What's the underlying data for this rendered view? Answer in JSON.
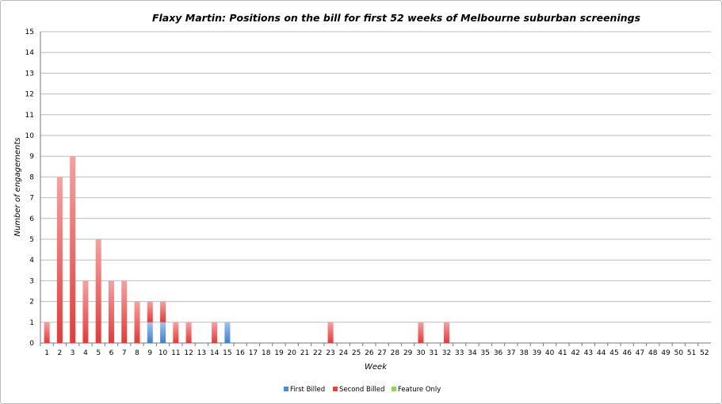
{
  "chart_data": {
    "type": "bar",
    "stacked": true,
    "title": "Flaxy Martin: Positions on the bill for first 52 weeks of Melbourne suburban screenings",
    "xlabel": "Week",
    "ylabel": "Number of engagements",
    "ylim": [
      0,
      15
    ],
    "yticks": [
      0,
      1,
      2,
      3,
      4,
      5,
      6,
      7,
      8,
      9,
      10,
      11,
      12,
      13,
      14,
      15
    ],
    "grid": true,
    "legend": "bottom",
    "categories": [
      "1",
      "2",
      "3",
      "4",
      "5",
      "6",
      "7",
      "8",
      "9",
      "10",
      "11",
      "12",
      "13",
      "14",
      "15",
      "16",
      "17",
      "18",
      "19",
      "20",
      "21",
      "22",
      "23",
      "24",
      "25",
      "26",
      "27",
      "28",
      "29",
      "30",
      "31",
      "32",
      "33",
      "34",
      "35",
      "36",
      "37",
      "38",
      "39",
      "40",
      "41",
      "42",
      "43",
      "44",
      "45",
      "46",
      "47",
      "48",
      "49",
      "50",
      "51",
      "52"
    ],
    "series": [
      {
        "name": "First Billed",
        "color": "#4a8ad8",
        "values": [
          0,
          0,
          0,
          0,
          0,
          0,
          0,
          0,
          1,
          1,
          0,
          0,
          0,
          0,
          1,
          0,
          0,
          0,
          0,
          0,
          0,
          0,
          0,
          0,
          0,
          0,
          0,
          0,
          0,
          0,
          0,
          0,
          0,
          0,
          0,
          0,
          0,
          0,
          0,
          0,
          0,
          0,
          0,
          0,
          0,
          0,
          0,
          0,
          0,
          0,
          0,
          0
        ]
      },
      {
        "name": "Second Billed",
        "color": "#e8443e",
        "values": [
          1,
          8,
          9,
          3,
          5,
          3,
          3,
          2,
          1,
          1,
          1,
          1,
          0,
          1,
          0,
          0,
          0,
          0,
          0,
          0,
          0,
          0,
          1,
          0,
          0,
          0,
          0,
          0,
          0,
          1,
          0,
          1,
          0,
          0,
          0,
          0,
          0,
          0,
          0,
          0,
          0,
          0,
          0,
          0,
          0,
          0,
          0,
          0,
          0,
          0,
          0,
          0
        ]
      },
      {
        "name": "Feature Only",
        "color": "#8ed84a",
        "values": [
          0,
          0,
          0,
          0,
          0,
          0,
          0,
          0,
          0,
          0,
          0,
          0,
          0,
          0,
          0,
          0,
          0,
          0,
          0,
          0,
          0,
          0,
          0,
          0,
          0,
          0,
          0,
          0,
          0,
          0,
          0,
          0,
          0,
          0,
          0,
          0,
          0,
          0,
          0,
          0,
          0,
          0,
          0,
          0,
          0,
          0,
          0,
          0,
          0,
          0,
          0,
          0
        ]
      }
    ]
  }
}
